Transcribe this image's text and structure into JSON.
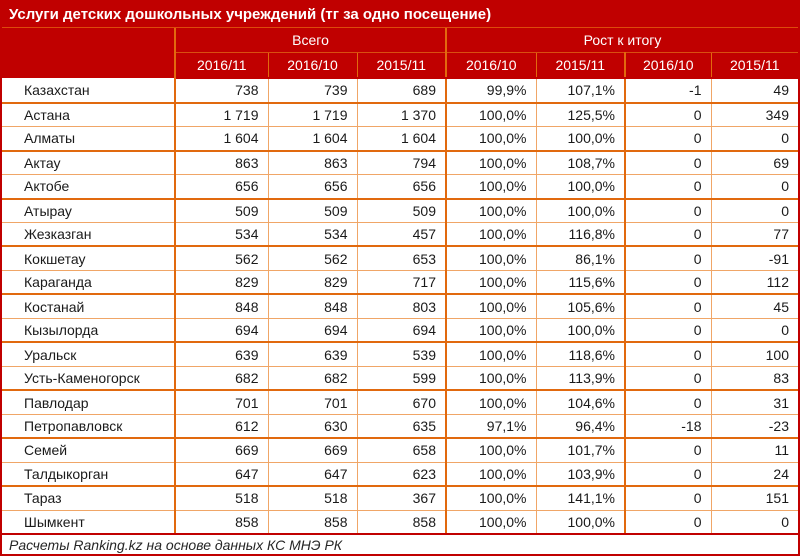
{
  "title": "Услуги детских дошкольных учреждений (тг за одно посещение)",
  "footer": "Расчеты Ranking.kz на основе данных КС МНЭ РК",
  "colors": {
    "header_red": "#C00000",
    "border_orange_thick": "#E1690E",
    "border_orange_thin": "#F0A667",
    "header_text": "#FFFFFF",
    "body_text": "#1A1A1A"
  },
  "chart_data": {
    "type": "table",
    "title": "Услуги детских дошкольных учреждений (тг за одно посещение)",
    "group_headers": [
      {
        "label": "Всего",
        "colspan": 3
      },
      {
        "label": "Рост к итогу",
        "colspan": 4
      }
    ],
    "columns": [
      "",
      "2016/11",
      "2016/10",
      "2015/11",
      "2016/10",
      "2015/11",
      "2016/10",
      "2015/11"
    ],
    "rows": [
      {
        "name": "Казахстан",
        "values": [
          "738",
          "739",
          "689",
          "99,9%",
          "107,1%",
          "-1",
          "49"
        ]
      },
      {
        "name": "Астана",
        "values": [
          "1 719",
          "1 719",
          "1 370",
          "100,0%",
          "125,5%",
          "0",
          "349"
        ]
      },
      {
        "name": "Алматы",
        "values": [
          "1 604",
          "1 604",
          "1 604",
          "100,0%",
          "100,0%",
          "0",
          "0"
        ]
      },
      {
        "name": "Актау",
        "values": [
          "863",
          "863",
          "794",
          "100,0%",
          "108,7%",
          "0",
          "69"
        ]
      },
      {
        "name": "Актобе",
        "values": [
          "656",
          "656",
          "656",
          "100,0%",
          "100,0%",
          "0",
          "0"
        ]
      },
      {
        "name": "Атырау",
        "values": [
          "509",
          "509",
          "509",
          "100,0%",
          "100,0%",
          "0",
          "0"
        ]
      },
      {
        "name": "Жезказган",
        "values": [
          "534",
          "534",
          "457",
          "100,0%",
          "116,8%",
          "0",
          "77"
        ]
      },
      {
        "name": "Кокшетау",
        "values": [
          "562",
          "562",
          "653",
          "100,0%",
          "86,1%",
          "0",
          "-91"
        ]
      },
      {
        "name": "Караганда",
        "values": [
          "829",
          "829",
          "717",
          "100,0%",
          "115,6%",
          "0",
          "112"
        ]
      },
      {
        "name": "Костанай",
        "values": [
          "848",
          "848",
          "803",
          "100,0%",
          "105,6%",
          "0",
          "45"
        ]
      },
      {
        "name": "Кызылорда",
        "values": [
          "694",
          "694",
          "694",
          "100,0%",
          "100,0%",
          "0",
          "0"
        ]
      },
      {
        "name": "Уральск",
        "values": [
          "639",
          "639",
          "539",
          "100,0%",
          "118,6%",
          "0",
          "100"
        ]
      },
      {
        "name": "Усть-Каменогорск",
        "values": [
          "682",
          "682",
          "599",
          "100,0%",
          "113,9%",
          "0",
          "83"
        ]
      },
      {
        "name": "Павлодар",
        "values": [
          "701",
          "701",
          "670",
          "100,0%",
          "104,6%",
          "0",
          "31"
        ]
      },
      {
        "name": "Петропавловск",
        "values": [
          "612",
          "630",
          "635",
          "97,1%",
          "96,4%",
          "-18",
          "-23"
        ]
      },
      {
        "name": "Семей",
        "values": [
          "669",
          "669",
          "658",
          "100,0%",
          "101,7%",
          "0",
          "11"
        ]
      },
      {
        "name": "Талдыкорган",
        "values": [
          "647",
          "647",
          "623",
          "100,0%",
          "103,9%",
          "0",
          "24"
        ]
      },
      {
        "name": "Тараз",
        "values": [
          "518",
          "518",
          "367",
          "100,0%",
          "141,1%",
          "0",
          "151"
        ]
      },
      {
        "name": "Шымкент",
        "values": [
          "858",
          "858",
          "858",
          "100,0%",
          "100,0%",
          "0",
          "0"
        ]
      }
    ]
  }
}
